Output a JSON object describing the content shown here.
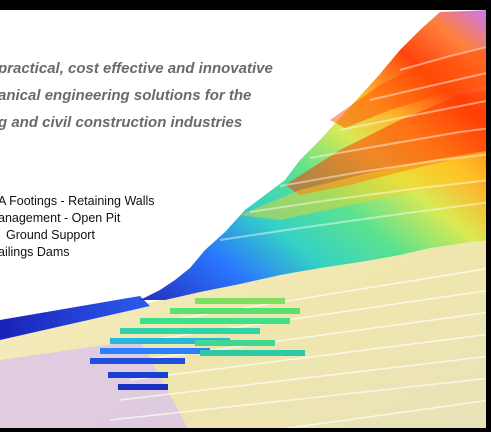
{
  "tagline": {
    "line1": "practical, cost effective and innovative",
    "line2": "anical engineering solutions for the",
    "line3": "g and civil construction industries"
  },
  "services": {
    "line1": "A Footings  -  Retaining Walls",
    "line2": "anagement  -  Open Pit",
    "line3": "Ground Support",
    "line4": "ailings Dams"
  },
  "colors": {
    "frame": "#000000",
    "tagline_text": "#6a6a6a",
    "services_text": "#111111",
    "hot": "#ff3a00",
    "warm": "#ffd21e",
    "mid": "#52e08a",
    "cool": "#1e6fff",
    "cold": "#1a22b8",
    "ground_pale": "#f3e9b5",
    "ground_lilac": "#dcc7e8"
  }
}
